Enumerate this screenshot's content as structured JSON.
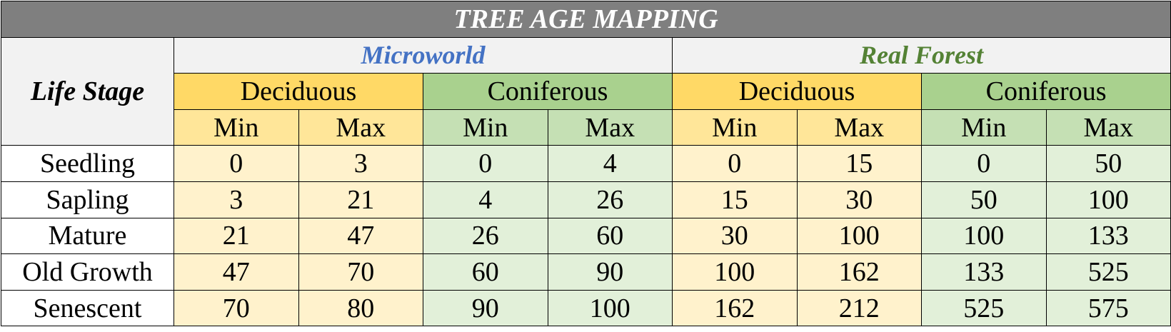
{
  "title": "TREE AGE MAPPING",
  "stage_header": "Life Stage",
  "groups": [
    {
      "name": "Microworld",
      "types": [
        {
          "name": "Deciduous",
          "min": "Min",
          "max": "Max"
        },
        {
          "name": "Coniferous",
          "min": "Min",
          "max": "Max"
        }
      ]
    },
    {
      "name": "Real Forest",
      "types": [
        {
          "name": "Deciduous",
          "min": "Min",
          "max": "Max"
        },
        {
          "name": "Coniferous",
          "min": "Min",
          "max": "Max"
        }
      ]
    }
  ],
  "rows": [
    {
      "stage": "Seedling",
      "values": [
        "0",
        "3",
        "0",
        "4",
        "0",
        "15",
        "0",
        "50"
      ]
    },
    {
      "stage": "Sapling",
      "values": [
        "3",
        "21",
        "4",
        "26",
        "15",
        "30",
        "50",
        "100"
      ]
    },
    {
      "stage": "Mature",
      "values": [
        "21",
        "47",
        "26",
        "60",
        "30",
        "100",
        "100",
        "133"
      ]
    },
    {
      "stage": "Old Growth",
      "values": [
        "47",
        "70",
        "60",
        "90",
        "100",
        "162",
        "133",
        "525"
      ]
    },
    {
      "stage": "Senescent",
      "values": [
        "70",
        "80",
        "90",
        "100",
        "162",
        "212",
        "525",
        "575"
      ]
    }
  ],
  "colors": {
    "title_bg": "#7f7f7f",
    "microworld_text": "#4472c4",
    "real_forest_text": "#548235",
    "deciduous_header": "#ffd966",
    "coniferous_header": "#a9d18e",
    "deciduous_cell": "#fff2cc",
    "coniferous_cell": "#e2f0d9"
  }
}
